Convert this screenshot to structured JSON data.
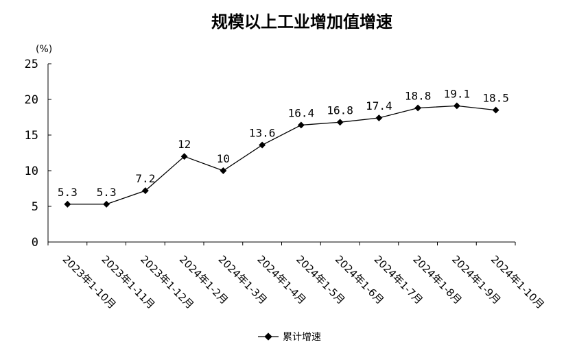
{
  "chart_data": {
    "type": "line",
    "title": "规模以上工业增加值增速",
    "unit_label": "(%)",
    "categories": [
      "2023年1-10月",
      "2023年1-11月",
      "2023年1-12月",
      "2024年1-2月",
      "2024年1-3月",
      "2024年1-4月",
      "2024年1-5月",
      "2024年1-6月",
      "2024年1-7月",
      "2024年1-8月",
      "2024年1-9月",
      "2024年1-10月"
    ],
    "series": [
      {
        "name": "累计增速",
        "values": [
          5.3,
          5.3,
          7.2,
          12,
          10,
          13.6,
          16.4,
          16.8,
          17.4,
          18.8,
          19.1,
          18.5
        ],
        "labels": [
          "5.3",
          "5.3",
          "7.2",
          "12",
          "10",
          "13.6",
          "16.4",
          "16.8",
          "17.4",
          "18.8",
          "19.1",
          "18.5"
        ]
      }
    ],
    "ylim": [
      0,
      25
    ],
    "yticks": [
      "0",
      "5",
      "10",
      "15",
      "20",
      "25"
    ],
    "grid": false,
    "legend": "bottom-center",
    "line_color": "#000000"
  }
}
